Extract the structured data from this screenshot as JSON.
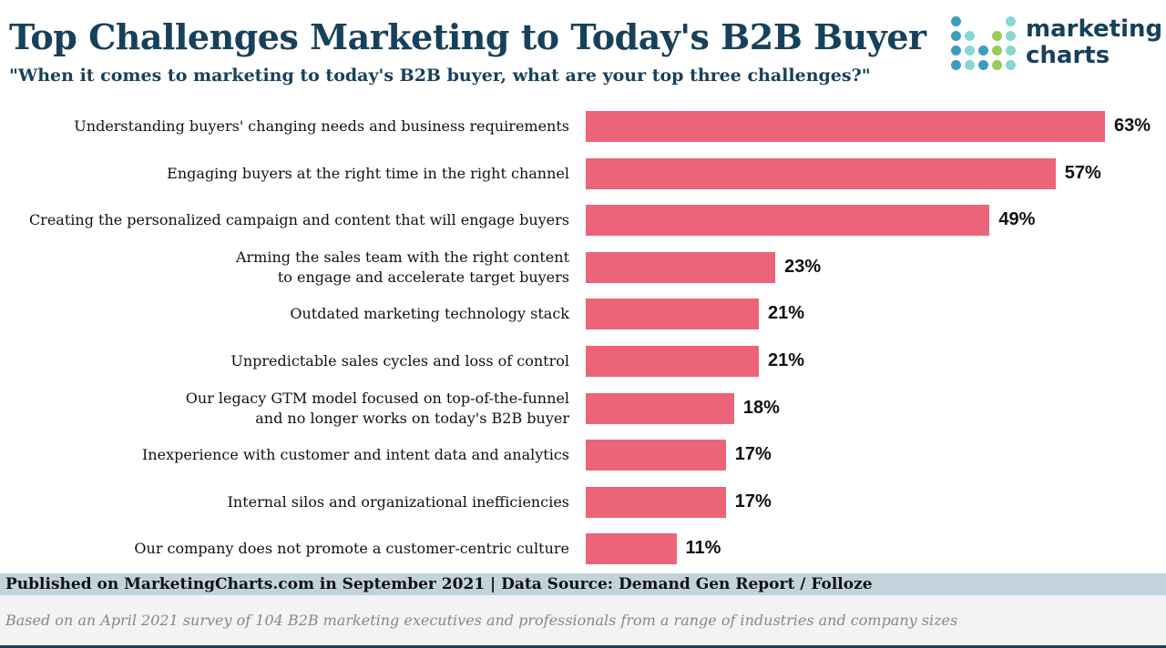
{
  "chart_data": {
    "type": "bar",
    "orientation": "horizontal",
    "title": "Top Challenges Marketing to Today's B2B Buyer",
    "subtitle": "\"When it comes to marketing to today's B2B buyer, what are your top three challenges?\"",
    "categories": [
      [
        "Understanding buyers' changing needs and business requirements"
      ],
      [
        "Engaging buyers at the right time in the right channel"
      ],
      [
        "Creating the personalized campaign and content that will engage buyers"
      ],
      [
        "Arming the sales team with the right content",
        "to engage and accelerate target buyers"
      ],
      [
        "Outdated marketing technology stack"
      ],
      [
        "Unpredictable sales cycles and loss of control"
      ],
      [
        "Our legacy GTM model focused on top-of-the-funnel",
        "and no longer works on today's B2B buyer"
      ],
      [
        "Inexperience with customer and intent data and analytics"
      ],
      [
        "Internal silos and organizational inefficiencies"
      ],
      [
        "Our company does not promote a customer-centric culture"
      ]
    ],
    "values": [
      63,
      57,
      49,
      23,
      21,
      21,
      18,
      17,
      17,
      11
    ],
    "value_labels": [
      "63%",
      "57%",
      "49%",
      "23%",
      "21%",
      "21%",
      "18%",
      "17%",
      "17%",
      "11%"
    ],
    "unit": "%",
    "xlim": [
      0,
      63
    ],
    "grid": false,
    "bar_color": "#ec6479"
  },
  "logo": {
    "line1": "marketing",
    "line2": "charts",
    "colors": {
      "blue": "#3f9bbf",
      "teal": "#86d6d6",
      "green": "#9cc95a"
    }
  },
  "footer": {
    "published": "Published on MarketingCharts.com in September 2021 | Data Source: Demand Gen Report / Folloze",
    "note": "Based on an April 2021 survey of 104 B2B marketing executives and professionals from a range of industries and company sizes"
  }
}
